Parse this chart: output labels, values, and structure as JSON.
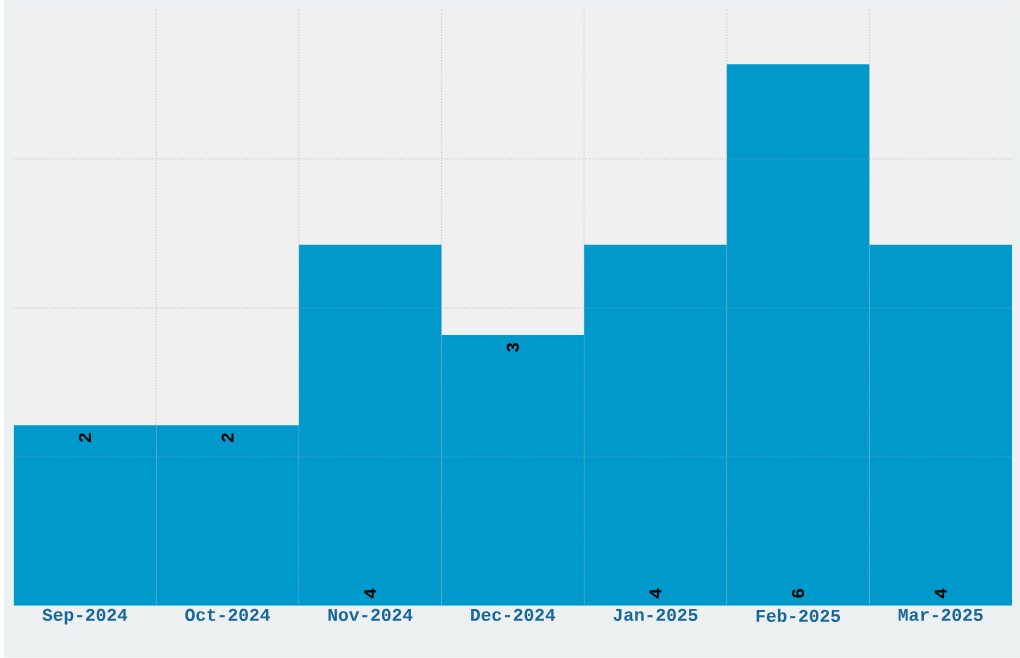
{
  "chart_data": {
    "type": "bar",
    "categories": [
      "Sep-2024",
      "Oct-2024",
      "Nov-2024",
      "Dec-2024",
      "Jan-2025",
      "Feb-2025",
      "Mar-2025"
    ],
    "values": [
      2,
      2,
      4,
      3,
      4,
      6,
      4
    ],
    "color": "#0099cc",
    "ylim": [
      0,
      6.6
    ],
    "yticks": [
      {
        "value": 1.65,
        "label": null
      },
      {
        "value": 3.3,
        "label": null
      },
      {
        "value": 4.95,
        "label": null
      }
    ],
    "grid": true,
    "data_labels": true
  }
}
